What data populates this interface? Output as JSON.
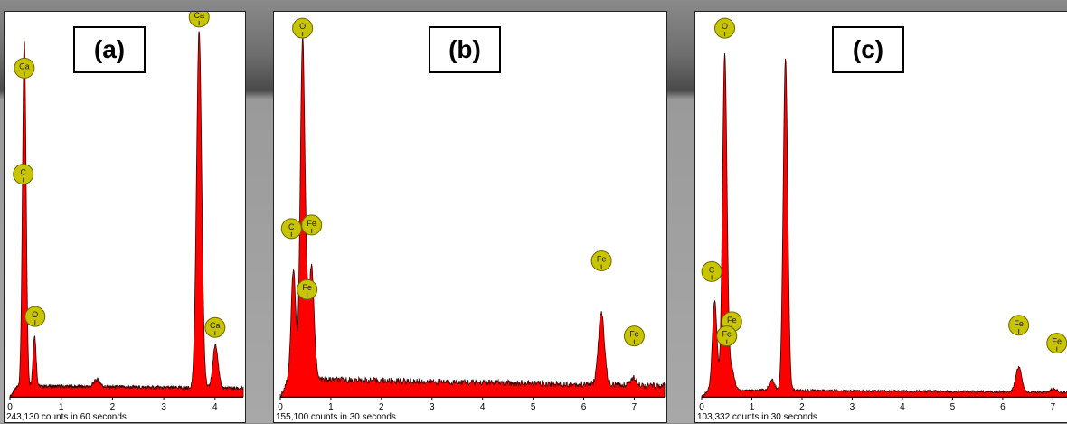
{
  "chart_data": [
    {
      "type": "area",
      "panel_label": "(a)",
      "counts_text": "243,130 counts in 60 seconds",
      "xlim": [
        0,
        4.55
      ],
      "ylim": [
        0,
        100
      ],
      "x_ticks": [
        0,
        1,
        2,
        3,
        4
      ],
      "color": "#ff0000",
      "background_level": 3,
      "peaks": [
        {
          "x": 0.28,
          "height": 95,
          "width": 0.035
        },
        {
          "x": 0.48,
          "height": 14,
          "width": 0.03
        },
        {
          "x": 1.7,
          "height": 2,
          "width": 0.06
        },
        {
          "x": 3.69,
          "height": 98,
          "width": 0.05
        },
        {
          "x": 4.01,
          "height": 12,
          "width": 0.05
        }
      ],
      "element_labels": [
        {
          "label": "Ca",
          "x": 0.28,
          "y": 90
        },
        {
          "label": "C",
          "x": 0.26,
          "y": 61
        },
        {
          "label": "O",
          "x": 0.49,
          "y": 22
        },
        {
          "label": "Ca",
          "x": 3.69,
          "y": 104
        },
        {
          "label": "Ca",
          "x": 4.0,
          "y": 19
        }
      ]
    },
    {
      "type": "area",
      "panel_label": "(b)",
      "counts_text": "155,100 counts in 30 seconds",
      "xlim": [
        0,
        7.6
      ],
      "ylim": [
        0,
        100
      ],
      "x_ticks": [
        0,
        1,
        2,
        3,
        4,
        5,
        6,
        7
      ],
      "color": "#ff0000",
      "background_level": 5,
      "peaks": [
        {
          "x": 0.26,
          "height": 31,
          "width": 0.045
        },
        {
          "x": 0.44,
          "height": 94,
          "width": 0.045
        },
        {
          "x": 0.52,
          "height": 12,
          "width": 0.04
        },
        {
          "x": 0.62,
          "height": 31,
          "width": 0.05
        },
        {
          "x": 6.35,
          "height": 20,
          "width": 0.06
        },
        {
          "x": 6.99,
          "height": 2,
          "width": 0.07
        }
      ],
      "element_labels": [
        {
          "label": "O",
          "x": 0.44,
          "y": 103
        },
        {
          "label": "C",
          "x": 0.22,
          "y": 47
        },
        {
          "label": "Fe",
          "x": 0.62,
          "y": 48
        },
        {
          "label": "Fe",
          "x": 0.53,
          "y": 30
        },
        {
          "label": "Fe",
          "x": 6.35,
          "y": 38
        },
        {
          "label": "Fe",
          "x": 7.0,
          "y": 17
        }
      ]
    },
    {
      "type": "area",
      "panel_label": "(c)",
      "counts_text": "103,332 counts in 30 seconds",
      "xlim": [
        0,
        7.3
      ],
      "ylim": [
        0,
        100
      ],
      "x_ticks": [
        0,
        1,
        2,
        3,
        4,
        5,
        6,
        7
      ],
      "color": "#ff0000",
      "background_level": 2,
      "peaks": [
        {
          "x": 0.26,
          "height": 25,
          "width": 0.045
        },
        {
          "x": 0.46,
          "height": 94,
          "width": 0.045
        },
        {
          "x": 0.6,
          "height": 6,
          "width": 0.05
        },
        {
          "x": 1.4,
          "height": 3,
          "width": 0.05
        },
        {
          "x": 1.67,
          "height": 93,
          "width": 0.045
        },
        {
          "x": 6.32,
          "height": 7,
          "width": 0.06
        },
        {
          "x": 7.02,
          "height": 1,
          "width": 0.06
        }
      ],
      "element_labels": [
        {
          "label": "O",
          "x": 0.46,
          "y": 103
        },
        {
          "label": "C",
          "x": 0.2,
          "y": 35
        },
        {
          "label": "Fe",
          "x": 0.6,
          "y": 21
        },
        {
          "label": "Fe",
          "x": 0.5,
          "y": 17
        },
        {
          "label": "Fe",
          "x": 6.32,
          "y": 20
        },
        {
          "label": "Fe",
          "x": 7.08,
          "y": 15
        }
      ]
    }
  ]
}
